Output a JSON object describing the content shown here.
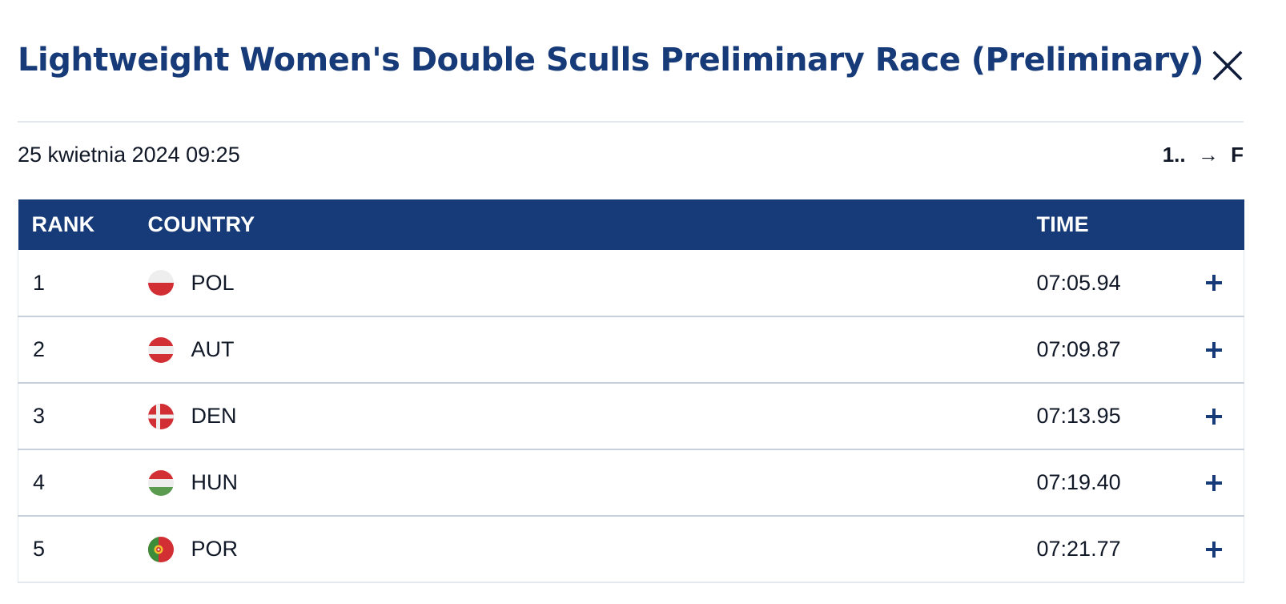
{
  "modal": {
    "title": "Lightweight Women's Double Sculls Preliminary Race (Preliminary)",
    "close_icon": "close-icon"
  },
  "meta": {
    "date": "25 kwietnia 2024 09:25",
    "progression_from": "1..",
    "progression_arrow": "→",
    "progression_to": "F"
  },
  "table": {
    "headers": {
      "rank": "RANK",
      "country": "COUNTRY",
      "time": "TIME"
    },
    "rows": [
      {
        "rank": "1",
        "country": "POL",
        "time": "07:05.94",
        "flag": "flag-pol-icon"
      },
      {
        "rank": "2",
        "country": "AUT",
        "time": "07:09.87",
        "flag": "flag-aut-icon"
      },
      {
        "rank": "3",
        "country": "DEN",
        "time": "07:13.95",
        "flag": "flag-den-icon"
      },
      {
        "rank": "4",
        "country": "HUN",
        "time": "07:19.40",
        "flag": "flag-hun-icon"
      },
      {
        "rank": "5",
        "country": "POR",
        "time": "07:21.77",
        "flag": "flag-por-icon"
      }
    ],
    "expand_icon": "plus-icon"
  },
  "colors": {
    "brand_navy": "#173a78",
    "row_divider": "#c8d0de",
    "text": "#111827"
  }
}
